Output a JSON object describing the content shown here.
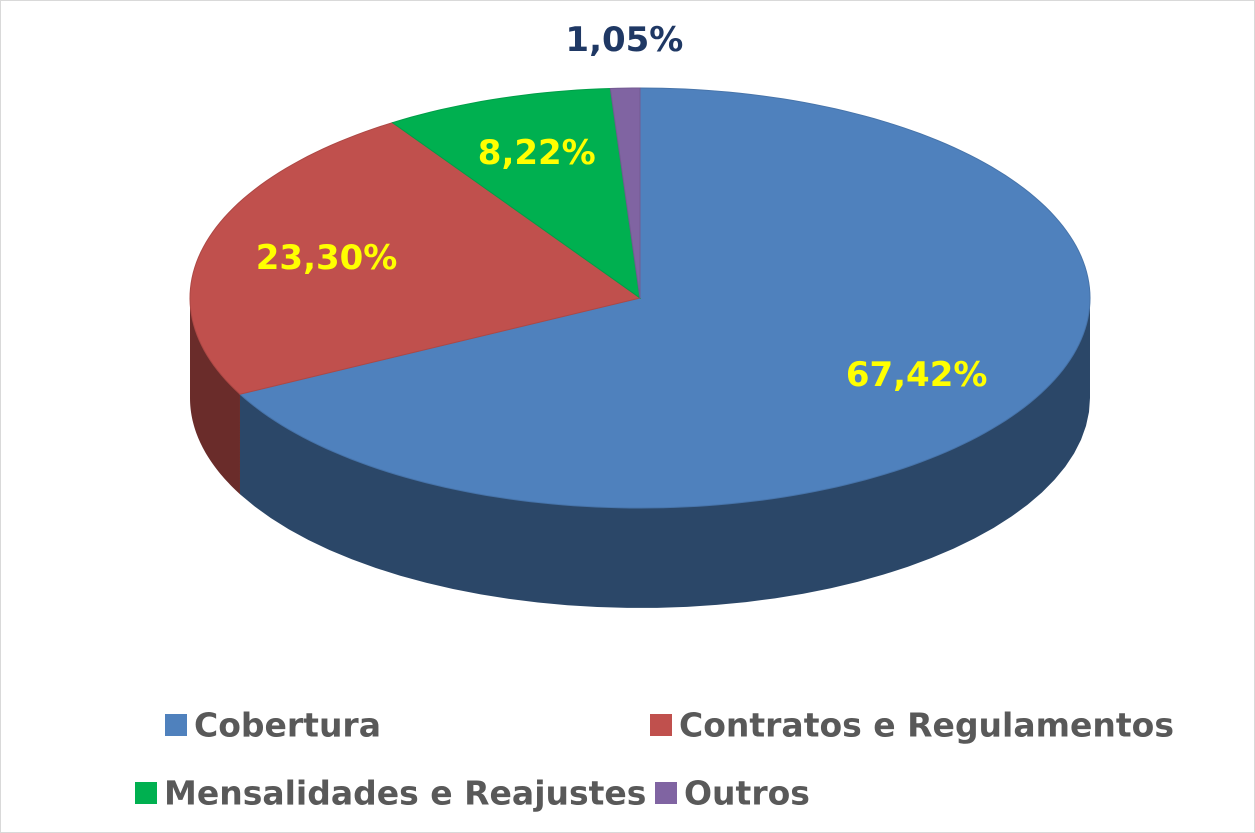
{
  "chart_data": {
    "type": "pie",
    "categories": [
      "Cobertura",
      "Contratos e Regulamentos",
      "Mensalidades e Reajustes",
      "Outros"
    ],
    "values": [
      67.42,
      23.3,
      8.22,
      1.05
    ],
    "value_labels": [
      "67,42%",
      "23,30%",
      "8,22%",
      "1,05%"
    ],
    "colors": [
      "#4f81bd",
      "#c0504d",
      "#00b050",
      "#8064a2"
    ],
    "value_label_colors": [
      "#ffff00",
      "#ffff00",
      "#ffff00",
      "#1f3864"
    ],
    "legend": "bottom"
  }
}
